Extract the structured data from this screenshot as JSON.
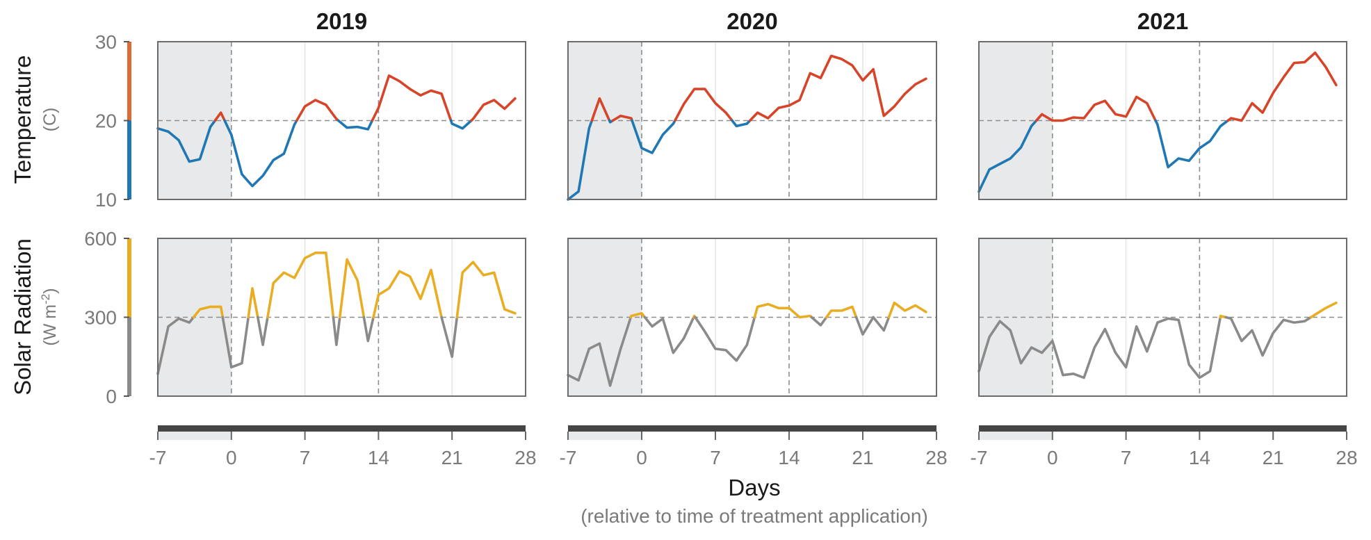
{
  "chart_data": {
    "type": "line",
    "x_label": "Days",
    "x_sublabel": "(relative to time of treatment application)",
    "x_ticks": [
      -7,
      0,
      7,
      14,
      21,
      28
    ],
    "x_range": [
      -7,
      28
    ],
    "shaded_x_range": [
      -7,
      0
    ],
    "rows": [
      {
        "label": "Temperature",
        "unit": "(C)",
        "y_range": [
          10,
          30
        ],
        "y_ticks": [
          10,
          20,
          30
        ],
        "threshold": 20,
        "color_above": "#d6452a",
        "color_below": "#1f77b4",
        "bar_color_above": "#e06a35",
        "bar_color_below": "#1f77b4"
      },
      {
        "label": "Solar Radiation",
        "unit": "(W m-2)",
        "y_range": [
          0,
          600
        ],
        "y_ticks": [
          0,
          300,
          600
        ],
        "threshold": 300,
        "color_above": "#e8ad22",
        "color_below": "#8a8a8a",
        "bar_color_above": "#e8ad22",
        "bar_color_below": "#8a8a8a"
      }
    ],
    "years": [
      {
        "title": "2019",
        "temperature": [
          [
            -7,
            19.0
          ],
          [
            -6,
            18.6
          ],
          [
            -5,
            17.5
          ],
          [
            -4,
            14.8
          ],
          [
            -3,
            15.1
          ],
          [
            -2,
            19.2
          ],
          [
            -1,
            21.0
          ],
          [
            0,
            18.2
          ],
          [
            1,
            13.2
          ],
          [
            2,
            11.7
          ],
          [
            3,
            13.0
          ],
          [
            4,
            15.0
          ],
          [
            5,
            15.8
          ],
          [
            6,
            19.5
          ],
          [
            7,
            21.8
          ],
          [
            8,
            22.6
          ],
          [
            9,
            22.0
          ],
          [
            10,
            20.2
          ],
          [
            11,
            19.1
          ],
          [
            12,
            19.2
          ],
          [
            13,
            18.9
          ],
          [
            14,
            21.6
          ],
          [
            15,
            25.7
          ],
          [
            16,
            25.0
          ],
          [
            17,
            24.0
          ],
          [
            18,
            23.2
          ],
          [
            19,
            23.8
          ],
          [
            20,
            23.4
          ],
          [
            21,
            19.6
          ],
          [
            22,
            19.0
          ],
          [
            23,
            20.2
          ],
          [
            24,
            22.0
          ],
          [
            25,
            22.6
          ],
          [
            26,
            21.5
          ],
          [
            27,
            22.8
          ]
        ],
        "solar": [
          [
            -7,
            85
          ],
          [
            -6,
            265
          ],
          [
            -5,
            295
          ],
          [
            -4,
            280
          ],
          [
            -3,
            330
          ],
          [
            -2,
            340
          ],
          [
            -1,
            340
          ],
          [
            0,
            110
          ],
          [
            1,
            125
          ],
          [
            2,
            410
          ],
          [
            3,
            195
          ],
          [
            4,
            430
          ],
          [
            5,
            470
          ],
          [
            6,
            450
          ],
          [
            7,
            525
          ],
          [
            8,
            545
          ],
          [
            9,
            545
          ],
          [
            10,
            195
          ],
          [
            11,
            520
          ],
          [
            12,
            440
          ],
          [
            13,
            210
          ],
          [
            14,
            385
          ],
          [
            15,
            410
          ],
          [
            16,
            475
          ],
          [
            17,
            455
          ],
          [
            18,
            370
          ],
          [
            19,
            480
          ],
          [
            20,
            300
          ],
          [
            21,
            150
          ],
          [
            22,
            470
          ],
          [
            23,
            510
          ],
          [
            24,
            460
          ],
          [
            25,
            470
          ],
          [
            26,
            330
          ],
          [
            27,
            315
          ]
        ]
      },
      {
        "title": "2020",
        "temperature": [
          [
            -7,
            10.0
          ],
          [
            -6,
            11.0
          ],
          [
            -5,
            19.0
          ],
          [
            -4,
            22.8
          ],
          [
            -3,
            19.8
          ],
          [
            -2,
            20.6
          ],
          [
            -1,
            20.3
          ],
          [
            0,
            16.5
          ],
          [
            1,
            15.9
          ],
          [
            2,
            18.2
          ],
          [
            3,
            19.6
          ],
          [
            4,
            22.1
          ],
          [
            5,
            24.0
          ],
          [
            6,
            24.0
          ],
          [
            7,
            22.2
          ],
          [
            8,
            21.0
          ],
          [
            9,
            19.3
          ],
          [
            10,
            19.6
          ],
          [
            11,
            21.0
          ],
          [
            12,
            20.3
          ],
          [
            13,
            21.6
          ],
          [
            14,
            21.9
          ],
          [
            15,
            22.6
          ],
          [
            16,
            26.0
          ],
          [
            17,
            25.4
          ],
          [
            18,
            28.2
          ],
          [
            19,
            27.8
          ],
          [
            20,
            27.0
          ],
          [
            21,
            25.1
          ],
          [
            22,
            26.5
          ],
          [
            23,
            20.6
          ],
          [
            24,
            21.8
          ],
          [
            25,
            23.4
          ],
          [
            26,
            24.6
          ],
          [
            27,
            25.3
          ]
        ],
        "solar": [
          [
            -7,
            80
          ],
          [
            -6,
            60
          ],
          [
            -5,
            180
          ],
          [
            -4,
            200
          ],
          [
            -3,
            40
          ],
          [
            -2,
            180
          ],
          [
            -1,
            305
          ],
          [
            0,
            315
          ],
          [
            1,
            265
          ],
          [
            2,
            295
          ],
          [
            3,
            165
          ],
          [
            4,
            220
          ],
          [
            5,
            305
          ],
          [
            6,
            245
          ],
          [
            7,
            180
          ],
          [
            8,
            175
          ],
          [
            9,
            135
          ],
          [
            10,
            195
          ],
          [
            11,
            340
          ],
          [
            12,
            350
          ],
          [
            13,
            335
          ],
          [
            14,
            335
          ],
          [
            15,
            300
          ],
          [
            16,
            305
          ],
          [
            17,
            270
          ],
          [
            18,
            325
          ],
          [
            19,
            325
          ],
          [
            20,
            340
          ],
          [
            21,
            235
          ],
          [
            22,
            300
          ],
          [
            23,
            250
          ],
          [
            24,
            355
          ],
          [
            25,
            325
          ],
          [
            26,
            345
          ],
          [
            27,
            320
          ]
        ]
      },
      {
        "title": "2021",
        "temperature": [
          [
            -7,
            11.0
          ],
          [
            -6,
            13.8
          ],
          [
            -5,
            14.5
          ],
          [
            -4,
            15.2
          ],
          [
            -3,
            16.6
          ],
          [
            -2,
            19.3
          ],
          [
            -1,
            20.8
          ],
          [
            0,
            20.0
          ],
          [
            1,
            20.0
          ],
          [
            2,
            20.4
          ],
          [
            3,
            20.3
          ],
          [
            4,
            22.0
          ],
          [
            5,
            22.5
          ],
          [
            6,
            20.8
          ],
          [
            7,
            20.5
          ],
          [
            8,
            23.0
          ],
          [
            9,
            22.2
          ],
          [
            10,
            19.5
          ],
          [
            11,
            14.1
          ],
          [
            12,
            15.2
          ],
          [
            13,
            14.9
          ],
          [
            14,
            16.5
          ],
          [
            15,
            17.4
          ],
          [
            16,
            19.3
          ],
          [
            17,
            20.3
          ],
          [
            18,
            20.0
          ],
          [
            19,
            22.2
          ],
          [
            20,
            21.0
          ],
          [
            21,
            23.5
          ],
          [
            22,
            25.5
          ],
          [
            23,
            27.3
          ],
          [
            24,
            27.4
          ],
          [
            25,
            28.6
          ],
          [
            26,
            26.8
          ],
          [
            27,
            24.5
          ]
        ],
        "solar": [
          [
            -7,
            95
          ],
          [
            -6,
            225
          ],
          [
            -5,
            285
          ],
          [
            -4,
            250
          ],
          [
            -3,
            125
          ],
          [
            -2,
            185
          ],
          [
            -1,
            165
          ],
          [
            0,
            210
          ],
          [
            1,
            80
          ],
          [
            2,
            85
          ],
          [
            3,
            70
          ],
          [
            4,
            185
          ],
          [
            5,
            255
          ],
          [
            6,
            165
          ],
          [
            7,
            110
          ],
          [
            8,
            265
          ],
          [
            9,
            170
          ],
          [
            10,
            280
          ],
          [
            11,
            295
          ],
          [
            12,
            290
          ],
          [
            13,
            120
          ],
          [
            14,
            70
          ],
          [
            15,
            95
          ],
          [
            16,
            305
          ],
          [
            17,
            295
          ],
          [
            18,
            210
          ],
          [
            19,
            250
          ],
          [
            20,
            155
          ],
          [
            21,
            240
          ],
          [
            22,
            290
          ],
          [
            23,
            280
          ],
          [
            24,
            285
          ],
          [
            25,
            310
          ],
          [
            26,
            335
          ],
          [
            27,
            355
          ]
        ]
      }
    ]
  }
}
